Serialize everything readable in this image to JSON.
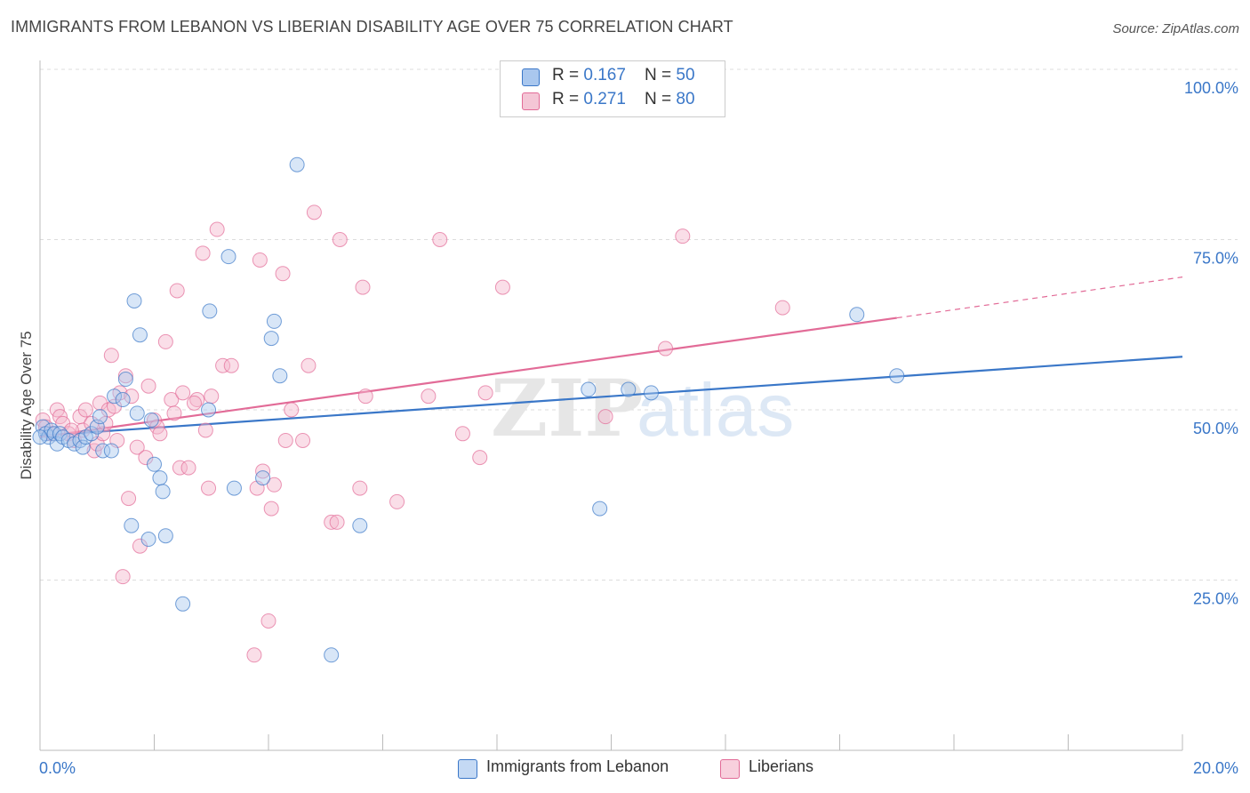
{
  "title": "IMMIGRANTS FROM LEBANON VS LIBERIAN DISABILITY AGE OVER 75 CORRELATION CHART",
  "source": "Source: ZipAtlas.com",
  "legend_top": {
    "rows": [
      {
        "r_label": "R = ",
        "r_value": "0.167",
        "n_label": "N = ",
        "n_value": "50"
      },
      {
        "r_label": "R = ",
        "r_value": "0.271",
        "n_label": "N = ",
        "n_value": "80"
      }
    ]
  },
  "colors": {
    "blue": "#3a77c8",
    "blue_fill": "#a9c7ee",
    "pink": "#e26b97",
    "pink_fill": "#f4b6cb",
    "tick_label": "#3a77c8",
    "grid": "#dddddd"
  },
  "chart_data": {
    "type": "scatter",
    "ylabel": "Disability Age Over 75",
    "xlim": [
      0,
      20
    ],
    "ylim": [
      0,
      100
    ],
    "x_tick_labels": [
      "0.0%",
      "20.0%"
    ],
    "y_tick_labels": [
      {
        "value": 25,
        "label": "25.0%"
      },
      {
        "value": 50,
        "label": "50.0%"
      },
      {
        "value": 75,
        "label": "75.0%"
      },
      {
        "value": 100,
        "label": "100.0%"
      }
    ],
    "watermark": "ZIPatlas",
    "series": [
      {
        "name": "Immigrants from Lebanon",
        "color": "#3a77c8",
        "fill": "#a9c7ee",
        "trend": {
          "x0": 0,
          "y0": 46.2,
          "x1": 20,
          "y1": 57.8
        },
        "points": [
          [
            0.05,
            47.5
          ],
          [
            0.1,
            46.5
          ],
          [
            0.15,
            46.0
          ],
          [
            0.2,
            47.0
          ],
          [
            0.25,
            46.5
          ],
          [
            0.3,
            45.0
          ],
          [
            0.35,
            46.5
          ],
          [
            0.4,
            46.0
          ],
          [
            0.5,
            45.5
          ],
          [
            0.6,
            45.0
          ],
          [
            0.7,
            45.5
          ],
          [
            0.75,
            44.5
          ],
          [
            0.8,
            46.0
          ],
          [
            0.9,
            46.5
          ],
          [
            1.0,
            47.5
          ],
          [
            1.05,
            49.0
          ],
          [
            1.1,
            44.0
          ],
          [
            1.25,
            44.0
          ],
          [
            1.3,
            52.0
          ],
          [
            1.45,
            51.5
          ],
          [
            1.5,
            54.5
          ],
          [
            1.6,
            33.0
          ],
          [
            1.65,
            66.0
          ],
          [
            1.7,
            49.5
          ],
          [
            1.75,
            61.0
          ],
          [
            1.9,
            31.0
          ],
          [
            1.95,
            48.5
          ],
          [
            2.0,
            42.0
          ],
          [
            2.1,
            40.0
          ],
          [
            2.15,
            38.0
          ],
          [
            2.2,
            31.5
          ],
          [
            2.5,
            21.5
          ],
          [
            2.95,
            50.0
          ],
          [
            2.97,
            64.5
          ],
          [
            3.3,
            72.5
          ],
          [
            3.4,
            38.5
          ],
          [
            3.9,
            40.0
          ],
          [
            4.05,
            60.5
          ],
          [
            4.1,
            63.0
          ],
          [
            4.2,
            55.0
          ],
          [
            4.5,
            86.0
          ],
          [
            5.1,
            14.0
          ],
          [
            5.6,
            33.0
          ],
          [
            9.6,
            53.0
          ],
          [
            9.8,
            35.5
          ],
          [
            10.3,
            53.0
          ],
          [
            10.7,
            52.5
          ],
          [
            14.3,
            64.0
          ],
          [
            15.0,
            55.0
          ],
          [
            0.0,
            46.0
          ]
        ]
      },
      {
        "name": "Liberians",
        "color": "#e26b97",
        "fill": "#f4b6cb",
        "trend": {
          "x0": 0,
          "y0": 46.0,
          "x1": 15.0,
          "y1": 63.5
        },
        "trend_ext": {
          "x0": 15.0,
          "y0": 63.5,
          "x1": 20,
          "y1": 69.5
        },
        "points": [
          [
            0.05,
            48.5
          ],
          [
            0.1,
            47.5
          ],
          [
            0.2,
            46.5
          ],
          [
            0.3,
            50.0
          ],
          [
            0.35,
            49.0
          ],
          [
            0.4,
            48.0
          ],
          [
            0.5,
            46.5
          ],
          [
            0.6,
            45.5
          ],
          [
            0.7,
            49.0
          ],
          [
            0.75,
            47.0
          ],
          [
            0.8,
            50.0
          ],
          [
            0.9,
            48.0
          ],
          [
            0.95,
            44.0
          ],
          [
            1.0,
            45.0
          ],
          [
            1.05,
            51.0
          ],
          [
            1.1,
            46.5
          ],
          [
            1.15,
            48.0
          ],
          [
            1.2,
            50.0
          ],
          [
            1.25,
            58.0
          ],
          [
            1.3,
            50.5
          ],
          [
            1.4,
            52.5
          ],
          [
            1.45,
            25.5
          ],
          [
            1.5,
            55.0
          ],
          [
            1.55,
            37.0
          ],
          [
            1.6,
            52.0
          ],
          [
            1.7,
            44.5
          ],
          [
            1.75,
            30.0
          ],
          [
            1.85,
            43.0
          ],
          [
            1.9,
            53.5
          ],
          [
            2.0,
            48.5
          ],
          [
            2.05,
            47.5
          ],
          [
            2.1,
            46.5
          ],
          [
            2.2,
            60.0
          ],
          [
            2.3,
            51.5
          ],
          [
            2.35,
            49.5
          ],
          [
            2.4,
            67.5
          ],
          [
            2.45,
            41.5
          ],
          [
            2.5,
            52.5
          ],
          [
            2.6,
            41.5
          ],
          [
            2.75,
            51.5
          ],
          [
            2.85,
            73.0
          ],
          [
            2.9,
            47.0
          ],
          [
            2.95,
            38.5
          ],
          [
            3.1,
            76.5
          ],
          [
            3.2,
            56.5
          ],
          [
            3.35,
            56.5
          ],
          [
            3.75,
            14.0
          ],
          [
            3.8,
            38.5
          ],
          [
            3.85,
            72.0
          ],
          [
            3.9,
            41.0
          ],
          [
            4.0,
            19.0
          ],
          [
            4.05,
            35.5
          ],
          [
            4.1,
            39.0
          ],
          [
            4.25,
            70.0
          ],
          [
            4.3,
            45.5
          ],
          [
            4.4,
            50.0
          ],
          [
            4.6,
            45.5
          ],
          [
            4.7,
            56.5
          ],
          [
            4.8,
            79.0
          ],
          [
            5.1,
            33.5
          ],
          [
            5.25,
            75.0
          ],
          [
            5.6,
            38.5
          ],
          [
            5.65,
            68.0
          ],
          [
            5.7,
            52.0
          ],
          [
            6.25,
            36.5
          ],
          [
            6.8,
            52.0
          ],
          [
            7.0,
            75.0
          ],
          [
            7.4,
            46.5
          ],
          [
            7.7,
            43.0
          ],
          [
            7.8,
            52.5
          ],
          [
            8.1,
            68.0
          ],
          [
            9.9,
            49.0
          ],
          [
            10.95,
            59.0
          ],
          [
            11.25,
            75.5
          ],
          [
            13.0,
            65.0
          ],
          [
            5.2,
            33.5
          ],
          [
            3.0,
            52.0
          ],
          [
            1.35,
            45.5
          ],
          [
            2.7,
            51.0
          ],
          [
            0.55,
            47.0
          ]
        ]
      }
    ]
  }
}
